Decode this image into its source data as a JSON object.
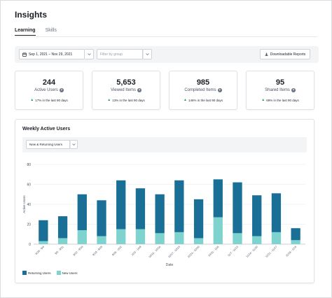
{
  "page": {
    "title": "Insights"
  },
  "tabs": [
    {
      "label": "Learning",
      "active": true
    },
    {
      "label": "Skills",
      "active": false
    }
  ],
  "filters": {
    "date_range": "Sep 1, 2021 – Nov 29, 2021",
    "group_placeholder": "Filter by group",
    "download_label": "Downloadable Reports"
  },
  "cards": [
    {
      "value": "244",
      "label": "Active Users",
      "trend": "17% in the last 90 days"
    },
    {
      "value": "5,653",
      "label": "Viewed Items",
      "trend": "13% in the last 90 days"
    },
    {
      "value": "985",
      "label": "Completed Items",
      "trend": "146% in the last 90 days"
    },
    {
      "value": "95",
      "label": "Shared Items",
      "trend": "69% in the last 90 days"
    }
  ],
  "chart_section": {
    "title": "Weekly Active Users",
    "series_select": "New & Returning Users"
  },
  "colors": {
    "returning": "#1a6f96",
    "new": "#7fd3cf",
    "accent_up": "#1f9d55"
  },
  "chart_data": {
    "type": "bar",
    "stacked": true,
    "categories": [
      "8/29 - 9/4",
      "9/5 - 9/11",
      "9/12 - 9/18",
      "9/19 - 9/25",
      "9/26 - 10/2",
      "10/3 - 10/9",
      "10/10 - 10/16",
      "10/17 - 10/23",
      "10/24 - 10/30",
      "10/31 - 11/6",
      "11/7 - 11/13",
      "11/14 - 11/20",
      "11/21 - 11/27",
      "11/28 - 12/4"
    ],
    "series": [
      {
        "name": "New Users",
        "values": [
          3,
          6,
          14,
          8,
          15,
          15,
          11,
          12,
          6,
          27,
          11,
          8,
          12,
          4
        ]
      },
      {
        "name": "Returning Users",
        "values": [
          21,
          22,
          36,
          36,
          49,
          41,
          39,
          52,
          39,
          38,
          51,
          41,
          39,
          12
        ]
      }
    ],
    "xlabel": "Date",
    "ylabel": "Active Users",
    "ylim": [
      0,
      80
    ],
    "yticks": [
      0,
      20,
      40,
      60,
      80
    ],
    "grid": true,
    "legend_position": "bottom-left"
  }
}
